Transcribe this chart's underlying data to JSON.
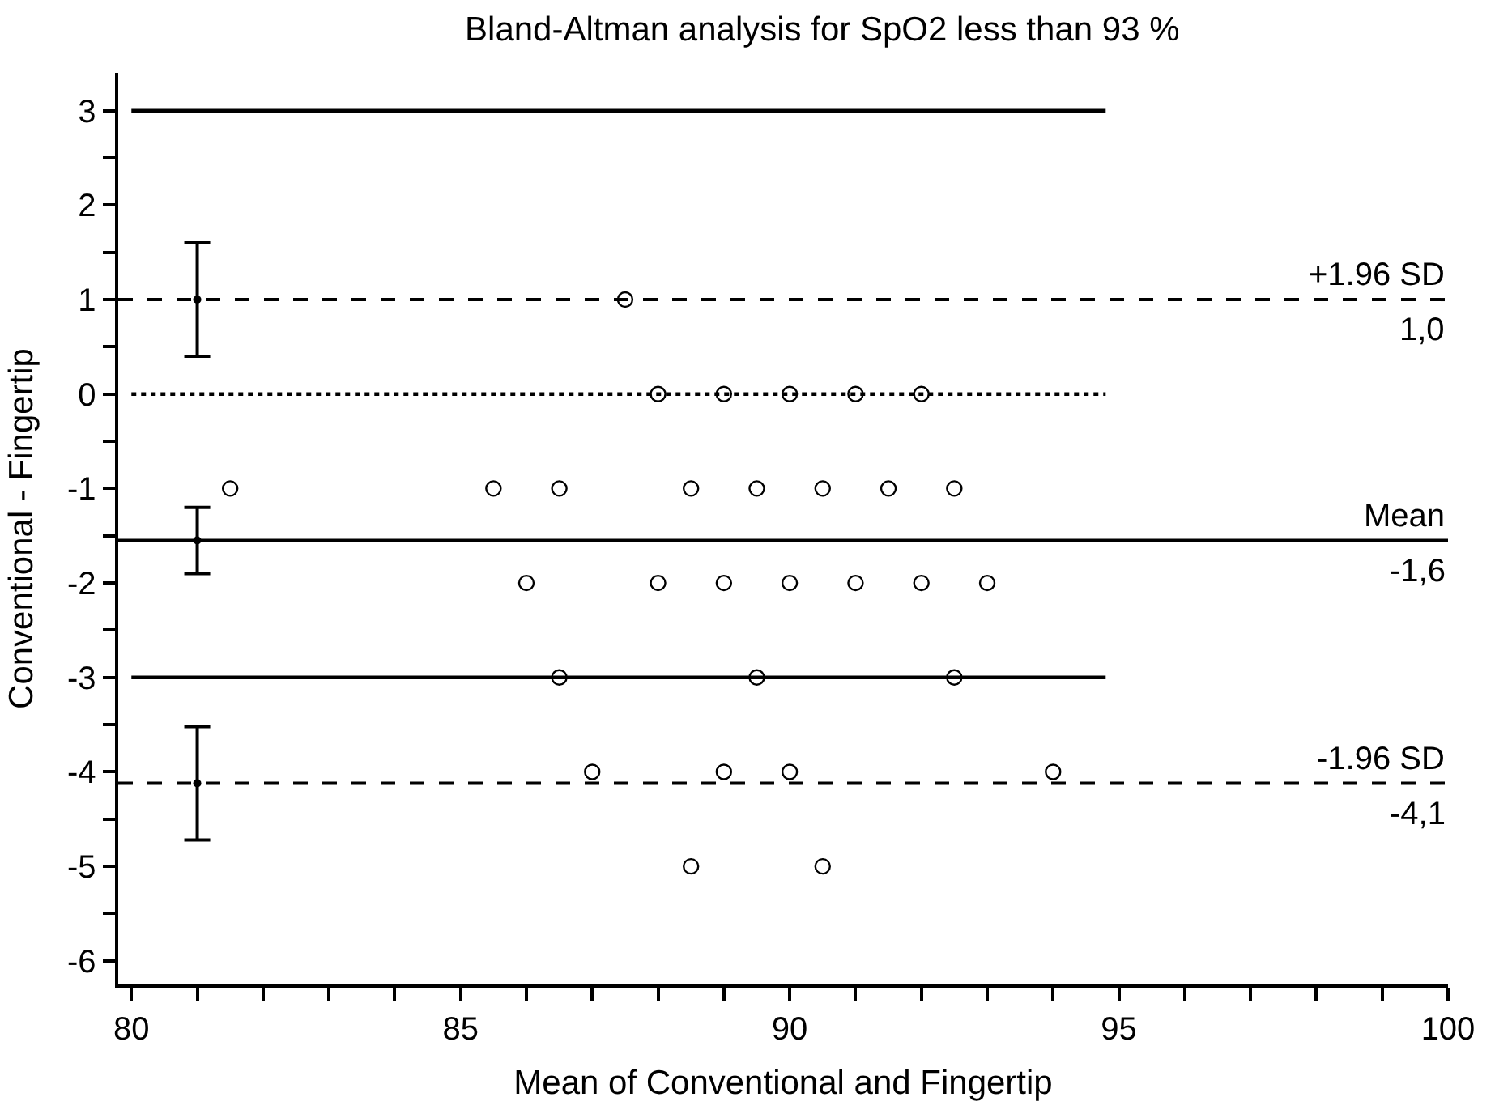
{
  "chart_data": {
    "type": "scatter",
    "title": "Bland-Altman analysis for SpO2 less than 93 %",
    "xlabel": "Mean of Conventional and Fingertip",
    "ylabel": "Conventional - Fingertip",
    "xlim": [
      79.8,
      100
    ],
    "xticks": [
      80,
      {
        "value": 81,
        "label": null
      },
      {
        "value": 82,
        "label": null
      },
      {
        "value": 83,
        "label": null
      },
      {
        "value": 84,
        "label": null
      },
      85,
      {
        "value": 86,
        "label": null
      },
      {
        "value": 87,
        "label": null
      },
      {
        "value": 88,
        "label": null
      },
      {
        "value": 89,
        "label": null
      },
      90,
      {
        "value": 91,
        "label": null
      },
      {
        "value": 92,
        "label": null
      },
      {
        "value": 93,
        "label": null
      },
      {
        "value": 94,
        "label": null
      },
      95,
      {
        "value": 96,
        "label": null
      },
      {
        "value": 97,
        "label": null
      },
      {
        "value": 98,
        "label": null
      },
      {
        "value": 99,
        "label": null
      },
      100
    ],
    "ylim": [
      -6.25,
      3.4
    ],
    "yticks": [
      -6,
      {
        "value": -5.5,
        "label": null
      },
      -5,
      {
        "value": -4.5,
        "label": null
      },
      -4,
      {
        "value": -3.5,
        "label": null
      },
      -3,
      {
        "value": -2.5,
        "label": null
      },
      -2,
      {
        "value": -1.5,
        "label": null
      },
      -1,
      {
        "value": -0.5,
        "label": null
      },
      0,
      {
        "value": 0.5,
        "label": null
      },
      1,
      {
        "value": 1.5,
        "label": null
      },
      2,
      {
        "value": 2.5,
        "label": null
      },
      3
    ],
    "series": [
      {
        "color": "#000000",
        "marker": "circle",
        "x": [
          87.5,
          88,
          89,
          90,
          91,
          92,
          81.5,
          85.5,
          86.5,
          88.5,
          89.5,
          90.5,
          91.5,
          92.5,
          86,
          88,
          89,
          90,
          91,
          92,
          93,
          86.5,
          89.5,
          92.5,
          87,
          89,
          90,
          94,
          88.5,
          90.5
        ],
        "values": [
          1,
          0,
          0,
          0,
          0,
          0,
          -1,
          -1,
          -1,
          -1,
          -1,
          -1,
          -1,
          -1,
          -2,
          -2,
          -2,
          -2,
          -2,
          -2,
          -2,
          -3,
          -3,
          -3,
          -4,
          -4,
          -4,
          -4,
          -5,
          -5
        ]
      },
      {
        "type": "line",
        "color": "#000000",
        "line_style": "solid",
        "x": [
          80,
          94.8
        ],
        "values": [
          3,
          3
        ]
      },
      {
        "type": "line",
        "color": "#000000",
        "line_style": "solid",
        "x": [
          80,
          94.8
        ],
        "values": [
          -3,
          -3
        ]
      },
      {
        "type": "line",
        "color": "#000000",
        "line_style": "dotted",
        "x": [
          80,
          94.8
        ],
        "values": [
          0,
          0
        ]
      },
      {
        "color": "#000000",
        "x": [
          81,
          81,
          81
        ],
        "values": [
          1.0,
          -1.55,
          -4.12
        ],
        "errors": [
          [
            0.4,
            1.6
          ],
          [
            -1.9,
            -1.2
          ],
          [
            -4.72,
            -3.52
          ]
        ]
      }
    ],
    "ref_lines": [
      {
        "axis": "y",
        "value": 1.0,
        "label": "+1.96 SD",
        "color": "#000000",
        "line_style": "dashed"
      },
      {
        "axis": "y",
        "value": -1.55,
        "label": "Mean",
        "color": "#000000",
        "line_style": "solid"
      },
      {
        "axis": "y",
        "value": -4.12,
        "label": "-1.96 SD",
        "color": "#000000",
        "line_style": "dashed"
      }
    ],
    "annotations": [
      {
        "text": "1,0",
        "y": 1.0
      },
      {
        "text": "-1,6",
        "y": -1.55
      },
      {
        "text": "-4,1",
        "y": -4.12
      }
    ]
  }
}
